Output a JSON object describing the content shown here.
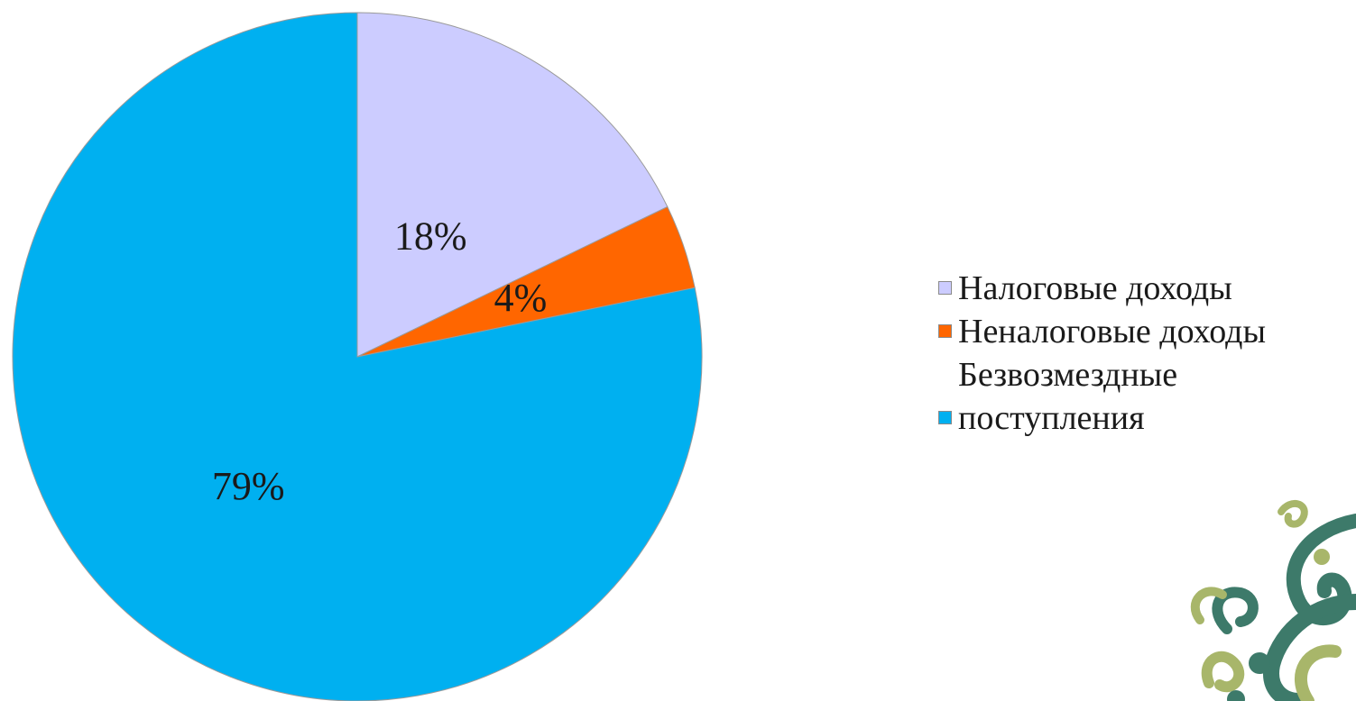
{
  "chart_data": {
    "type": "pie",
    "categories": [
      "Налоговые доходы",
      "Неналоговые доходы",
      "Безвозмездные поступления"
    ],
    "values": [
      18,
      4,
      79
    ],
    "unit": "%",
    "data_labels": [
      "18%",
      "4%",
      "79%"
    ],
    "colors": [
      "#ccccff",
      "#ff6600",
      "#00b0f0"
    ],
    "start": "12 o'clock",
    "direction": "clockwise",
    "legend_position": "right"
  },
  "legend": {
    "items": [
      {
        "label": "Налоговые доходы",
        "color": "#ccccff"
      },
      {
        "label": "Неналоговые доходы",
        "color": "#ff6600"
      },
      {
        "label": "Безвозмездные поступления",
        "color": "#00b0f0"
      }
    ]
  },
  "decoration": {
    "icon": "floral-ornament-icon",
    "colors": [
      "#3d7a6a",
      "#a8b66a"
    ]
  }
}
